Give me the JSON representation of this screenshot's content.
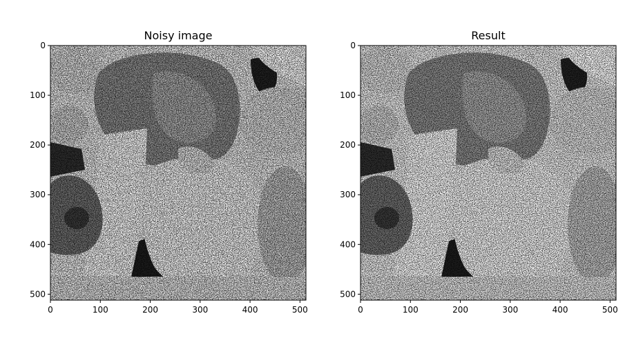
{
  "chart_data": [
    {
      "type": "heatmap",
      "title": "Noisy image",
      "xlabel": "",
      "ylabel": "",
      "xlim": [
        0,
        512
      ],
      "ylim": [
        512,
        0
      ],
      "x_ticks": [
        0,
        100,
        200,
        300,
        400,
        500
      ],
      "y_ticks": [
        0,
        100,
        200,
        300,
        400,
        500
      ],
      "colormap": "gray",
      "grid": false
    },
    {
      "type": "heatmap",
      "title": "Result",
      "xlabel": "",
      "ylabel": "",
      "xlim": [
        0,
        512
      ],
      "ylim": [
        512,
        0
      ],
      "x_ticks": [
        0,
        100,
        200,
        300,
        400,
        500
      ],
      "y_ticks": [
        0,
        100,
        200,
        300,
        400,
        500
      ],
      "colormap": "gray",
      "grid": false
    }
  ]
}
